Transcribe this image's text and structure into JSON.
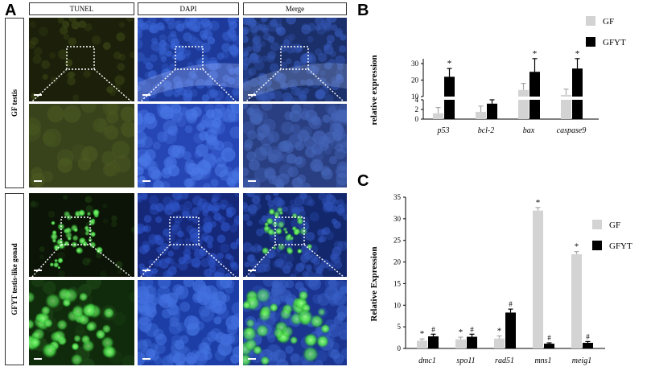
{
  "panel_a": {
    "letter": "A",
    "columns": [
      "TUNEL",
      "DAPI",
      "Merge"
    ],
    "rows": [
      "GF testis",
      "GFYT testis-like gonad"
    ]
  },
  "colors": {
    "gf": "#d3d3d3",
    "gfyt": "#000000",
    "tunel_bg": "#1c200a",
    "tunel_bg_zoom": "#38431b",
    "dapi": "#1d3a9a",
    "dapi_zoom": "#2746b5",
    "green_signal": "#4be04a"
  },
  "chart_data": [
    {
      "id": "B",
      "letter": "B",
      "type": "bar",
      "ylabel": "relative expression",
      "categories": [
        "p53",
        "bcl-2",
        "bax",
        "caspase9"
      ],
      "legend": [
        "GF",
        "GFYT"
      ],
      "legend_position": "top-right",
      "axis_break": true,
      "lower_ticks": [
        "0",
        "2",
        "4"
      ],
      "upper_ticks": [
        "10",
        "20",
        "30"
      ],
      "series": [
        {
          "name": "GF",
          "values": [
            1.2,
            1.5,
            14,
            11
          ],
          "errors": [
            1.2,
            1.2,
            4,
            3.5
          ]
        },
        {
          "name": "GFYT",
          "values": [
            22,
            3.2,
            25,
            27
          ],
          "errors": [
            5,
            1.8,
            8,
            6
          ]
        }
      ],
      "significance": {
        "GFYT": [
          "*",
          "",
          "*",
          "*"
        ]
      }
    },
    {
      "id": "C",
      "letter": "C",
      "type": "bar",
      "ylabel": "Relative Expression",
      "categories": [
        "dmc1",
        "spo11",
        "rad51",
        "mns1",
        "meig1"
      ],
      "legend": [
        "GF",
        "GFYT"
      ],
      "legend_position": "top-right",
      "ylim": [
        0,
        35
      ],
      "yticks": [
        "0",
        "5",
        "10",
        "15",
        "20",
        "25",
        "30",
        "35"
      ],
      "series": [
        {
          "name": "GF",
          "values": [
            1.8,
            2.1,
            2.3,
            31.9,
            21.8
          ],
          "errors": [
            0.4,
            0.5,
            0.6,
            0.7,
            0.6
          ]
        },
        {
          "name": "GFYT",
          "values": [
            2.8,
            2.7,
            8.3,
            1.1,
            1.3
          ],
          "errors": [
            0.5,
            0.6,
            0.8,
            0.2,
            0.3
          ]
        }
      ],
      "significance": {
        "GF": [
          "*",
          "*",
          "*",
          "*",
          "*"
        ],
        "GFYT": [
          "#",
          "#",
          "#",
          "#",
          "#"
        ]
      }
    }
  ]
}
